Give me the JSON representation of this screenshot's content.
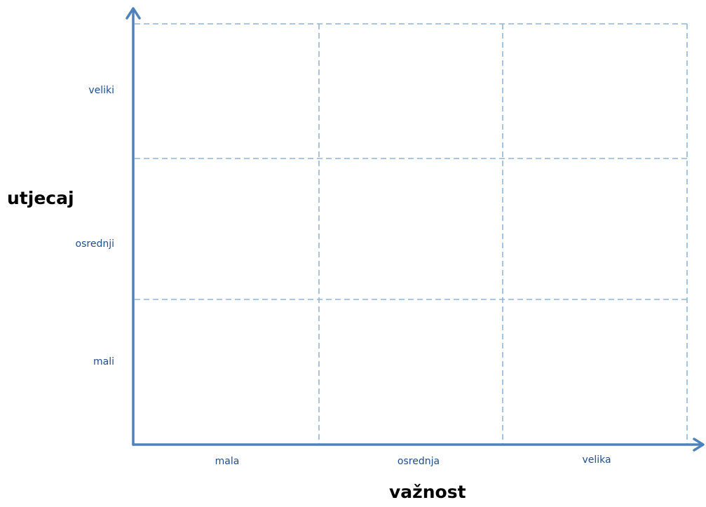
{
  "diagram": {
    "y_axis": {
      "title": "utjecaj",
      "levels": [
        "veliki",
        "osrednji",
        "mali"
      ]
    },
    "x_axis": {
      "title": "važnost",
      "levels": [
        "mala",
        "osrednja",
        "velika"
      ]
    },
    "grid": {
      "rows": 3,
      "columns": 3,
      "style": "dashed"
    },
    "colors": {
      "axis": "#4f81bd",
      "grid": "#8fb4d9",
      "label": "#1f4e8c",
      "title": "#000000"
    }
  }
}
